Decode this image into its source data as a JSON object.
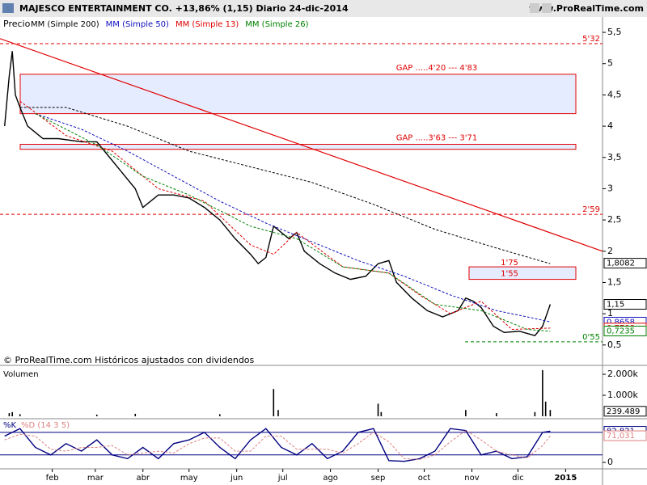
{
  "header": {
    "title": "MAJESCO ENTERTAINMENT CO.  +13,86% (1,15)  Diario  24-dic-2014",
    "site": "www.ProRealTime.com",
    "credit": "© ProRealTime.com  Históricos ajustados con dividendos"
  },
  "chart_data": [
    {
      "type": "line",
      "title": "Precio",
      "ylim": [
        0.2,
        5.63
      ],
      "xlim": [
        -3,
        389
      ],
      "yticks": [
        {
          "value": 5.5,
          "label": "5,5"
        },
        5,
        {
          "value": 4.5,
          "label": "4,5"
        },
        4,
        {
          "value": 3.5,
          "label": "3,5"
        },
        3,
        {
          "value": 2.5,
          "label": "2,5"
        },
        2,
        {
          "value": 1.5,
          "label": "1,5"
        },
        1,
        {
          "value": 0.5,
          "label": "0,5"
        }
      ],
      "xticks": [
        {
          "value": 31,
          "label": "feb"
        },
        {
          "value": 59,
          "label": "mar"
        },
        {
          "value": 90,
          "label": "abr"
        },
        {
          "value": 120,
          "label": "may"
        },
        {
          "value": 151,
          "label": "jun"
        },
        {
          "value": 181,
          "label": "jul"
        },
        {
          "value": 212,
          "label": "ago"
        },
        {
          "value": 243,
          "label": "sep"
        },
        {
          "value": 273,
          "label": "oct"
        },
        {
          "value": 304,
          "label": "nov"
        },
        {
          "value": 334,
          "label": "dic"
        },
        {
          "value": 365,
          "label": "2015"
        }
      ],
      "series": [
        {
          "name": "Precio",
          "color": "#000000",
          "style": "solid",
          "x": [
            0,
            3,
            5,
            7,
            10,
            15,
            20,
            25,
            35,
            50,
            60,
            65,
            75,
            85,
            90,
            100,
            110,
            120,
            130,
            140,
            150,
            160,
            165,
            170,
            175,
            180,
            185,
            190,
            195,
            205,
            215,
            225,
            235,
            243,
            250,
            255,
            265,
            275,
            285,
            295,
            300,
            305,
            310,
            318,
            325,
            335,
            345,
            350,
            355
          ],
          "values": [
            4.0,
            4.8,
            5.2,
            4.5,
            4.3,
            4.0,
            3.9,
            3.8,
            3.8,
            3.75,
            3.75,
            3.6,
            3.3,
            3.0,
            2.7,
            2.9,
            2.9,
            2.85,
            2.7,
            2.5,
            2.2,
            1.95,
            1.8,
            1.9,
            2.4,
            2.3,
            2.2,
            2.3,
            2.0,
            1.8,
            1.65,
            1.55,
            1.6,
            1.8,
            1.85,
            1.5,
            1.25,
            1.05,
            0.95,
            1.05,
            1.25,
            1.2,
            1.1,
            0.8,
            0.7,
            0.72,
            0.65,
            0.8,
            1.15
          ]
        },
        {
          "name": "MM (Simple 200)",
          "color": "#000000",
          "style": "dashed",
          "x": [
            10,
            40,
            80,
            120,
            160,
            200,
            240,
            280,
            320,
            355
          ],
          "values": [
            4.3,
            4.3,
            4.0,
            3.6,
            3.35,
            3.1,
            2.75,
            2.35,
            2.05,
            1.8
          ]
        },
        {
          "name": "MM (Simple 50)",
          "color": "#1010c0",
          "style": "dashed",
          "x": [
            20,
            50,
            80,
            110,
            140,
            170,
            200,
            230,
            260,
            290,
            320,
            340,
            355
          ],
          "values": [
            4.2,
            3.95,
            3.6,
            3.2,
            2.8,
            2.45,
            2.15,
            1.85,
            1.6,
            1.3,
            1.05,
            0.95,
            0.87
          ]
        },
        {
          "name": "MM (Simple 13)",
          "color": "#e00000",
          "style": "dashed",
          "x": [
            10,
            40,
            70,
            100,
            130,
            160,
            175,
            190,
            220,
            250,
            270,
            290,
            310,
            330,
            355
          ],
          "values": [
            4.4,
            3.85,
            3.6,
            3.0,
            2.8,
            2.1,
            1.95,
            2.3,
            1.75,
            1.65,
            1.3,
            1.0,
            1.2,
            0.75,
            0.77
          ]
        },
        {
          "name": "MM (Simple 26)",
          "color": "#008000",
          "style": "dashed",
          "x": [
            20,
            60,
            90,
            120,
            160,
            190,
            220,
            250,
            280,
            310,
            340,
            355
          ],
          "values": [
            4.2,
            3.7,
            3.2,
            2.9,
            2.4,
            2.2,
            1.75,
            1.65,
            1.15,
            1.05,
            0.75,
            0.72
          ]
        }
      ],
      "trendline": {
        "color": "#e00000",
        "x": [
          -3,
          389
        ],
        "values": [
          5.4,
          2.0
        ]
      },
      "levels": [
        {
          "value": 5.32,
          "label": "5'32",
          "color": "#e00000"
        },
        {
          "value": 2.59,
          "label": "2'59",
          "color": "#e00000"
        },
        {
          "value": 0.55,
          "label": "0'55",
          "color": "#008000"
        }
      ],
      "zones": [
        {
          "from": 4.2,
          "to": 4.83,
          "label": "GAP .....4'20 --- 4'83"
        },
        {
          "from": 3.63,
          "to": 3.71,
          "label": "GAP .....3'63 --- 3'71"
        },
        {
          "from": 1.55,
          "to": 1.75,
          "label_top": "1'75",
          "label_bottom": "1'55"
        }
      ],
      "last_values": [
        {
          "value": 1.8082,
          "label": "1,8082",
          "color": "#000000"
        },
        {
          "value": 1.15,
          "label": "1,15",
          "color": "#000000"
        },
        {
          "value": 0.8658,
          "label": "0,8658",
          "color": "#1010c0"
        },
        {
          "value": 0.7708,
          "label": "0,7708",
          "color": "#e00000"
        },
        {
          "value": 0.7235,
          "label": "0,7235",
          "color": "#008000"
        }
      ]
    },
    {
      "type": "bar",
      "title": "Volumen",
      "color": "#000000",
      "ylim": [
        0,
        2310000
      ],
      "xlim": [
        -3,
        389
      ],
      "yticks": [
        {
          "value": 2000000,
          "label": "2.000k"
        },
        {
          "value": 1000000,
          "label": "1.000k"
        }
      ],
      "x": [
        3,
        5,
        10,
        60,
        85,
        140,
        175,
        178,
        243,
        245,
        300,
        320,
        345,
        350,
        352,
        355
      ],
      "values": [
        150000,
        200000,
        100000,
        80000,
        120000,
        100000,
        1300000,
        300000,
        600000,
        200000,
        300000,
        150000,
        200000,
        2200000,
        700000,
        300000
      ],
      "last_values": [
        {
          "value": 239489,
          "label": "239.489",
          "color": "#000000"
        }
      ]
    },
    {
      "type": "line",
      "title": "%K",
      "ylim": [
        -17,
        112
      ],
      "xlim": [
        -3,
        389
      ],
      "yticks": [
        0
      ],
      "bands": [
        20,
        80
      ],
      "series": [
        {
          "name": "%K",
          "color": "#000080",
          "style": "solid",
          "x": [
            0,
            10,
            20,
            30,
            40,
            50,
            60,
            70,
            80,
            90,
            100,
            110,
            120,
            130,
            140,
            150,
            160,
            170,
            180,
            190,
            200,
            210,
            220,
            230,
            240,
            250,
            260,
            270,
            280,
            290,
            300,
            310,
            320,
            330,
            340,
            350,
            355
          ],
          "values": [
            70,
            90,
            40,
            20,
            50,
            30,
            60,
            20,
            10,
            40,
            10,
            50,
            60,
            80,
            40,
            10,
            60,
            90,
            40,
            20,
            50,
            10,
            30,
            80,
            90,
            5,
            3,
            10,
            30,
            90,
            85,
            20,
            30,
            10,
            15,
            80,
            83
          ]
        },
        {
          "name": "%D (14 3 5)",
          "color": "#e08080",
          "style": "dashed",
          "x": [
            0,
            10,
            20,
            30,
            40,
            50,
            60,
            70,
            80,
            90,
            100,
            110,
            120,
            130,
            140,
            150,
            160,
            170,
            180,
            190,
            200,
            210,
            220,
            230,
            240,
            250,
            260,
            270,
            280,
            290,
            300,
            310,
            320,
            330,
            340,
            350,
            355
          ],
          "values": [
            60,
            75,
            70,
            35,
            30,
            40,
            40,
            45,
            20,
            25,
            30,
            25,
            50,
            65,
            65,
            30,
            30,
            70,
            70,
            35,
            35,
            35,
            25,
            50,
            80,
            55,
            10,
            8,
            20,
            55,
            85,
            60,
            30,
            20,
            12,
            45,
            71
          ]
        }
      ],
      "last_values": [
        {
          "value": 82.821,
          "label": "82,821",
          "color": "#000080"
        },
        {
          "value": 71.031,
          "label": "71,031",
          "color": "#e08080"
        }
      ]
    }
  ]
}
